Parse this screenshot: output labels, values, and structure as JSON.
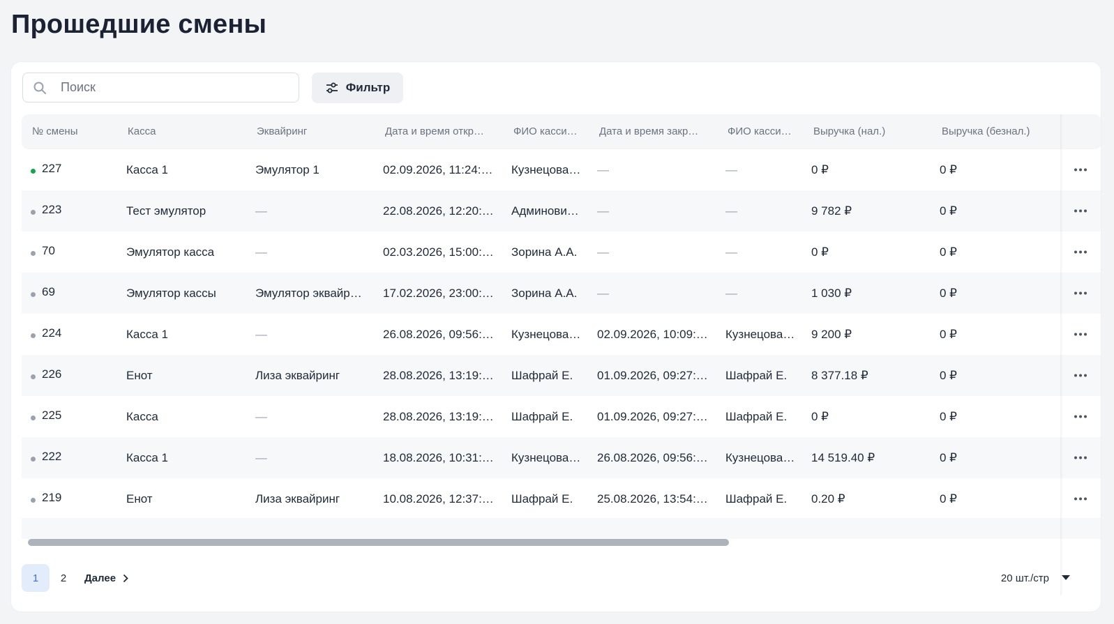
{
  "page": {
    "title": "Прошедшие смены"
  },
  "toolbar": {
    "search_placeholder": "Поиск",
    "filter_label": "Фильтр"
  },
  "table": {
    "headers": [
      "№ смены",
      "Касса",
      "Эквайринг",
      "Дата и время откр…",
      "ФИО касси…",
      "Дата и время закр…",
      "ФИО касси…",
      "Выручка (нал.)",
      "Выручка (безнал.)"
    ],
    "rows": [
      {
        "status": "active",
        "cells": [
          "227",
          "Касса 1",
          "Эмулятор 1",
          "02.09.2026, 11:24:…",
          "Кузнецова…",
          "—",
          "—",
          "0 ₽",
          "0 ₽"
        ]
      },
      {
        "status": "closed",
        "cells": [
          "223",
          "Тест эмулятор",
          "—",
          "22.08.2026, 12:20:…",
          "Админови…",
          "—",
          "—",
          "9 782 ₽",
          "0 ₽"
        ]
      },
      {
        "status": "closed",
        "cells": [
          "70",
          "Эмулятор касса",
          "—",
          "02.03.2026, 15:00:…",
          "Зорина А.А.",
          "—",
          "—",
          "0 ₽",
          "0 ₽"
        ]
      },
      {
        "status": "closed",
        "cells": [
          "69",
          "Эмулятор кассы",
          "Эмулятор эквайр…",
          "17.02.2026, 23:00:…",
          "Зорина А.А.",
          "—",
          "—",
          "1 030 ₽",
          "0 ₽"
        ]
      },
      {
        "status": "closed",
        "cells": [
          "224",
          "Касса 1",
          "—",
          "26.08.2026, 09:56:…",
          "Кузнецова…",
          "02.09.2026, 10:09:…",
          "Кузнецова…",
          "9 200 ₽",
          "0 ₽"
        ]
      },
      {
        "status": "closed",
        "cells": [
          "226",
          "Енот",
          "Лиза эквайринг",
          "28.08.2026, 13:19:…",
          "Шафрай Е.",
          "01.09.2026, 09:27:…",
          "Шафрай Е.",
          "8 377.18 ₽",
          "0 ₽"
        ]
      },
      {
        "status": "closed",
        "cells": [
          "225",
          "Касса",
          "—",
          "28.08.2026, 13:19:…",
          "Шафрай Е.",
          "01.09.2026, 09:27:…",
          "Шафрай Е.",
          "0 ₽",
          "0 ₽"
        ]
      },
      {
        "status": "closed",
        "cells": [
          "222",
          "Касса 1",
          "—",
          "18.08.2026, 10:31:…",
          "Кузнецова…",
          "26.08.2026, 09:56:…",
          "Кузнецова…",
          "14 519.40 ₽",
          "0 ₽"
        ]
      },
      {
        "status": "closed",
        "cells": [
          "219",
          "Енот",
          "Лиза эквайринг",
          "10.08.2026, 12:37:…",
          "Шафрай Е.",
          "25.08.2026, 13:54:…",
          "Шафрай Е.",
          "0.20 ₽",
          "0 ₽"
        ]
      }
    ],
    "row_actions_icon": "more-horizontal-icon"
  },
  "pagination": {
    "pages": [
      "1",
      "2"
    ],
    "current": "1",
    "next_label": "Далее",
    "per_page_label": "20 шт./стр"
  },
  "colors": {
    "background": "#f3f4f6",
    "active_status": "#16a34a",
    "inactive_status": "#9aa2ad",
    "current_page_bg": "#e3ecfb",
    "current_page_text": "#3b6fd1"
  }
}
